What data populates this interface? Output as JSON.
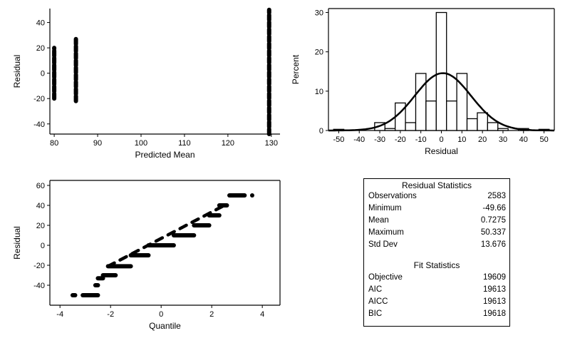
{
  "chart_data": [
    {
      "type": "scatter",
      "xlabel": "Predicted Mean",
      "ylabel": "Residual",
      "xlim": [
        79,
        132
      ],
      "ylim": [
        -48,
        51
      ],
      "xticks": [
        80,
        90,
        100,
        110,
        120,
        130
      ],
      "yticks": [
        -40,
        -20,
        0,
        20,
        40
      ],
      "groups": [
        {
          "x": 80,
          "ymin": -20,
          "ymax": 20
        },
        {
          "x": 85,
          "ymin": -22,
          "ymax": 27
        },
        {
          "x": 129.5,
          "ymin": -48,
          "ymax": 50
        }
      ]
    },
    {
      "type": "bar",
      "xlabel": "Residual",
      "ylabel": "Percent",
      "xlim": [
        -55,
        55
      ],
      "ylim": [
        0,
        31
      ],
      "xticks": [
        -50,
        -40,
        -30,
        -20,
        -10,
        0,
        10,
        20,
        30,
        40,
        50
      ],
      "yticks": [
        0,
        10,
        20,
        30
      ],
      "bin_centers": [
        -50,
        -30,
        -25,
        -20,
        -15,
        -10,
        -5,
        0,
        5,
        10,
        15,
        20,
        25,
        30,
        40,
        50
      ],
      "values": [
        0.3,
        2,
        0.5,
        7,
        2,
        14.5,
        7.5,
        30,
        7.5,
        14.5,
        3,
        4.5,
        2,
        0.5,
        0.5,
        0.3
      ],
      "curve": "normal density",
      "curve_mean": 0.7275,
      "curve_sd": 13.676
    },
    {
      "type": "scatter",
      "xlabel": "Quantile",
      "ylabel": "Residual",
      "xlim": [
        -4.4,
        4.7
      ],
      "ylim": [
        -60,
        65
      ],
      "xticks": [
        -4,
        -2,
        0,
        2,
        4
      ],
      "yticks": [
        -40,
        -20,
        0,
        20,
        40,
        60
      ],
      "steps": [
        {
          "q0": -3.5,
          "q1": -3.4,
          "y": -50
        },
        {
          "q0": -3.1,
          "q1": -2.5,
          "y": -50
        },
        {
          "q0": -2.6,
          "q1": -2.5,
          "y": -40
        },
        {
          "q0": -2.5,
          "q1": -2.3,
          "y": -33
        },
        {
          "q0": -2.3,
          "q1": -1.8,
          "y": -30
        },
        {
          "q0": -2.1,
          "q1": -1.2,
          "y": -21
        },
        {
          "q0": -1.2,
          "q1": -0.5,
          "y": -10
        },
        {
          "q0": -0.5,
          "q1": 0.5,
          "y": 0
        },
        {
          "q0": 0.5,
          "q1": 1.3,
          "y": 10
        },
        {
          "q0": 1.3,
          "q1": 1.9,
          "y": 20
        },
        {
          "q0": 1.9,
          "q1": 2.3,
          "y": 30
        },
        {
          "q0": 2.3,
          "q1": 2.6,
          "y": 40
        },
        {
          "q0": 2.7,
          "q1": 3.3,
          "y": 50
        },
        {
          "q0": 3.6,
          "q1": 3.6,
          "y": 50
        }
      ]
    }
  ],
  "residual_statistics": {
    "title": "Residual Statistics",
    "rows": [
      {
        "label": "Observations",
        "value": "2583"
      },
      {
        "label": "Minimum",
        "value": "-49.66"
      },
      {
        "label": "Mean",
        "value": "0.7275"
      },
      {
        "label": "Maximum",
        "value": "50.337"
      },
      {
        "label": "Std Dev",
        "value": "13.676"
      }
    ]
  },
  "fit_statistics": {
    "title": "Fit Statistics",
    "rows": [
      {
        "label": "Objective",
        "value": "19609"
      },
      {
        "label": "AIC",
        "value": "19613"
      },
      {
        "label": "AICC",
        "value": "19613"
      },
      {
        "label": "BIC",
        "value": "19618"
      }
    ]
  }
}
